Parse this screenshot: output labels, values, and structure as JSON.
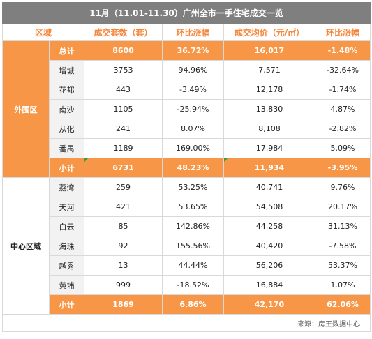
{
  "title": "11月（11.01-11.30）广州全市一手住宅成交一览",
  "headers": [
    "区域",
    "成交套数（套）",
    "环比涨幅",
    "成交均价（元/㎡）",
    "环比涨幅"
  ],
  "groups": [
    {
      "region": "外围区",
      "rows": [
        {
          "name": "总计",
          "units": "8600",
          "units_change": "36.72%",
          "price": "16,017",
          "price_change": "-1.48%"
        },
        {
          "name": "增城",
          "units": "3753",
          "units_change": "94.96%",
          "price": "7,571",
          "price_change": "-32.64%"
        },
        {
          "name": "花都",
          "units": "443",
          "units_change": "-3.49%",
          "price": "12,178",
          "price_change": "-1.74%"
        },
        {
          "name": "南沙",
          "units": "1105",
          "units_change": "-25.94%",
          "price": "13,830",
          "price_change": "4.87%"
        },
        {
          "name": "从化",
          "units": "241",
          "units_change": "8.07%",
          "price": "8,108",
          "price_change": "-2.82%"
        },
        {
          "name": "番禺",
          "units": "1189",
          "units_change": "169.00%",
          "price": "17,984",
          "price_change": "5.09%"
        },
        {
          "name": "小计",
          "units": "6731",
          "units_change": "48.23%",
          "price": "11,934",
          "price_change": "-3.95%"
        }
      ]
    },
    {
      "region": "中心区域",
      "rows": [
        {
          "name": "荔湾",
          "units": "259",
          "units_change": "53.25%",
          "price": "40,741",
          "price_change": "9.76%"
        },
        {
          "name": "天河",
          "units": "421",
          "units_change": "53.65%",
          "price": "54,508",
          "price_change": "20.17%"
        },
        {
          "name": "白云",
          "units": "85",
          "units_change": "142.86%",
          "price": "44,258",
          "price_change": "31.13%"
        },
        {
          "name": "海珠",
          "units": "92",
          "units_change": "155.56%",
          "price": "40,420",
          "price_change": "-7.58%"
        },
        {
          "name": "越秀",
          "units": "13",
          "units_change": "44.44%",
          "price": "56,206",
          "price_change": "53.37%"
        },
        {
          "name": "黄埔",
          "units": "999",
          "units_change": "-18.52%",
          "price": "16,884",
          "price_change": "1.07%"
        },
        {
          "name": "小计",
          "units": "1869",
          "units_change": "6.86%",
          "price": "42,170",
          "price_change": "62.06%"
        }
      ]
    }
  ],
  "source": "来源：房王数据中心",
  "colors": {
    "accent": "#f79646",
    "title_bg": "#7f7f7f",
    "header_text": "#f5863a",
    "row_label_bg": "#f2f2f2"
  }
}
